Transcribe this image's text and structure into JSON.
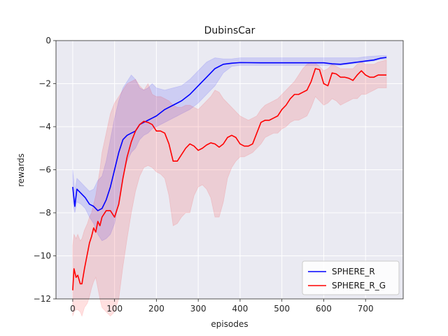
{
  "chart_data": {
    "type": "line",
    "title": "DubinsCar",
    "xlabel": "episodes",
    "ylabel": "rewards",
    "xlim": [
      -40,
      790
    ],
    "ylim": [
      -12,
      0
    ],
    "xticks": [
      0,
      100,
      200,
      300,
      400,
      500,
      600,
      700
    ],
    "yticks": [
      -12,
      -10,
      -8,
      -6,
      -4,
      -2,
      0
    ],
    "xtick_labels": [
      "0",
      "100",
      "200",
      "300",
      "400",
      "500",
      "600",
      "700"
    ],
    "ytick_labels": [
      "−12",
      "−10",
      "−8",
      "−6",
      "−4",
      "−2",
      "0"
    ],
    "grid": true,
    "legend_position": "lower-right",
    "series": [
      {
        "name": "SPHERE_R",
        "color": "#0000ff",
        "x": [
          0,
          5,
          10,
          20,
          30,
          40,
          50,
          60,
          70,
          80,
          90,
          100,
          110,
          120,
          130,
          140,
          150,
          160,
          170,
          180,
          190,
          200,
          220,
          240,
          260,
          280,
          300,
          320,
          340,
          360,
          380,
          400,
          450,
          500,
          550,
          600,
          620,
          640,
          660,
          680,
          700,
          720,
          735,
          750
        ],
        "y": [
          -6.8,
          -7.7,
          -6.9,
          -7.1,
          -7.3,
          -7.6,
          -7.7,
          -7.9,
          -7.8,
          -7.4,
          -6.8,
          -6.0,
          -5.2,
          -4.6,
          -4.4,
          -4.3,
          -4.2,
          -3.9,
          -3.8,
          -3.7,
          -3.6,
          -3.5,
          -3.2,
          -3.0,
          -2.8,
          -2.5,
          -2.1,
          -1.7,
          -1.3,
          -1.1,
          -1.05,
          -1.02,
          -1.03,
          -1.03,
          -1.03,
          -1.03,
          -1.08,
          -1.1,
          -1.05,
          -1.0,
          -0.95,
          -0.9,
          -0.82,
          -0.78
        ],
        "band_lower": [
          -7.5,
          -8.0,
          -7.5,
          -7.6,
          -7.8,
          -8.2,
          -8.5,
          -9.0,
          -9.3,
          -9.2,
          -9.0,
          -8.5,
          -7.5,
          -6.3,
          -5.6,
          -5.2,
          -5.0,
          -4.6,
          -4.4,
          -4.3,
          -4.1,
          -4.0,
          -3.8,
          -3.6,
          -3.4,
          -3.2,
          -2.9,
          -2.5,
          -2.1,
          -1.5,
          -1.2,
          -1.15,
          -1.15,
          -1.15,
          -1.15,
          -1.15,
          -1.15,
          -1.15,
          -1.1,
          -1.05,
          -1.0,
          -0.95,
          -0.88,
          -0.85
        ],
        "band_upper": [
          -6.0,
          -7.0,
          -6.4,
          -6.6,
          -6.8,
          -7.0,
          -6.9,
          -6.5,
          -6.3,
          -5.6,
          -4.6,
          -3.6,
          -2.8,
          -2.2,
          -1.9,
          -1.6,
          -1.8,
          -2.2,
          -2.3,
          -2.2,
          -2.0,
          -2.2,
          -2.3,
          -2.2,
          -2.1,
          -1.8,
          -1.4,
          -1.0,
          -0.8,
          -0.85,
          -0.85,
          -0.8,
          -0.8,
          -0.8,
          -0.8,
          -0.8,
          -0.8,
          -0.8,
          -0.8,
          -0.8,
          -0.75,
          -0.72,
          -0.7,
          -0.7
        ]
      },
      {
        "name": "SPHERE_R_G",
        "color": "#ff0000",
        "x": [
          0,
          3,
          8,
          12,
          18,
          22,
          28,
          35,
          40,
          45,
          50,
          55,
          60,
          65,
          70,
          80,
          90,
          100,
          110,
          120,
          130,
          140,
          150,
          160,
          170,
          180,
          190,
          200,
          210,
          220,
          230,
          240,
          250,
          260,
          270,
          280,
          290,
          300,
          310,
          320,
          330,
          340,
          350,
          360,
          370,
          380,
          390,
          400,
          410,
          420,
          430,
          440,
          450,
          460,
          470,
          480,
          490,
          500,
          510,
          520,
          530,
          540,
          550,
          560,
          570,
          580,
          590,
          600,
          610,
          620,
          630,
          640,
          650,
          660,
          670,
          680,
          690,
          700,
          710,
          720,
          730,
          740,
          750
        ],
        "y": [
          -11.6,
          -10.6,
          -11.0,
          -10.9,
          -11.3,
          -11.3,
          -10.6,
          -9.9,
          -9.4,
          -9.1,
          -8.7,
          -8.9,
          -8.4,
          -8.6,
          -8.2,
          -7.9,
          -7.9,
          -8.2,
          -7.6,
          -6.4,
          -5.4,
          -4.7,
          -4.2,
          -3.9,
          -3.75,
          -3.8,
          -3.9,
          -4.2,
          -4.2,
          -4.3,
          -4.8,
          -5.6,
          -5.6,
          -5.3,
          -5.0,
          -4.8,
          -4.9,
          -5.1,
          -5.0,
          -4.85,
          -4.75,
          -4.8,
          -4.95,
          -4.8,
          -4.5,
          -4.4,
          -4.5,
          -4.8,
          -4.9,
          -4.9,
          -4.8,
          -4.3,
          -3.8,
          -3.7,
          -3.7,
          -3.6,
          -3.5,
          -3.2,
          -3.0,
          -2.7,
          -2.5,
          -2.5,
          -2.4,
          -2.3,
          -1.9,
          -1.3,
          -1.35,
          -2.0,
          -2.1,
          -1.5,
          -1.55,
          -1.7,
          -1.7,
          -1.75,
          -1.85,
          -1.6,
          -1.4,
          -1.6,
          -1.7,
          -1.7,
          -1.6,
          -1.6,
          -1.6
        ],
        "band_lower": [
          -12.8,
          -12.6,
          -12.5,
          -12.5,
          -12.6,
          -12.8,
          -12.4,
          -12.2,
          -11.9,
          -11.5,
          -11.2,
          -11.0,
          -11.5,
          -12.0,
          -12.4,
          -12.6,
          -12.8,
          -12.6,
          -12.0,
          -10.5,
          -9.2,
          -8.0,
          -7.0,
          -6.3,
          -5.9,
          -5.8,
          -5.9,
          -6.1,
          -6.2,
          -6.4,
          -7.2,
          -8.6,
          -8.5,
          -8.2,
          -8.0,
          -8.0,
          -7.2,
          -6.8,
          -6.7,
          -6.9,
          -7.3,
          -8.2,
          -8.2,
          -7.5,
          -6.4,
          -5.9,
          -5.6,
          -5.4,
          -5.4,
          -5.3,
          -5.2,
          -5.0,
          -4.8,
          -4.5,
          -4.4,
          -4.3,
          -4.3,
          -4.1,
          -4.0,
          -3.8,
          -3.7,
          -3.7,
          -3.6,
          -3.5,
          -3.1,
          -2.6,
          -2.8,
          -3.0,
          -2.9,
          -2.7,
          -2.8,
          -3.0,
          -2.9,
          -2.8,
          -2.7,
          -2.7,
          -2.5,
          -2.5,
          -2.4,
          -2.3,
          -2.2,
          -2.2,
          -2.2
        ],
        "band_upper": [
          -9.5,
          -9.0,
          -9.2,
          -9.0,
          -9.3,
          -9.2,
          -8.8,
          -8.5,
          -8.2,
          -8.0,
          -7.6,
          -7.2,
          -6.6,
          -6.0,
          -5.2,
          -4.3,
          -3.4,
          -2.9,
          -2.6,
          -2.3,
          -2.0,
          -1.9,
          -1.8,
          -2.1,
          -2.3,
          -2.0,
          -2.5,
          -2.6,
          -2.6,
          -2.7,
          -2.8,
          -3.0,
          -3.1,
          -3.1,
          -3.0,
          -3.0,
          -3.1,
          -3.2,
          -3.0,
          -2.8,
          -2.6,
          -2.3,
          -2.4,
          -2.7,
          -2.9,
          -3.1,
          -3.3,
          -3.5,
          -3.6,
          -3.7,
          -3.6,
          -3.5,
          -3.2,
          -3.0,
          -2.9,
          -2.8,
          -2.7,
          -2.5,
          -2.3,
          -2.1,
          -1.9,
          -1.6,
          -1.3,
          -1.1,
          -1.0,
          -1.05,
          -1.2,
          -1.4,
          -1.3,
          -1.1,
          -1.2,
          -1.3,
          -1.3,
          -1.3,
          -1.3,
          -1.1,
          -1.0,
          -1.1,
          -1.1,
          -1.1,
          -1.0,
          -0.95,
          -0.9
        ]
      }
    ]
  }
}
